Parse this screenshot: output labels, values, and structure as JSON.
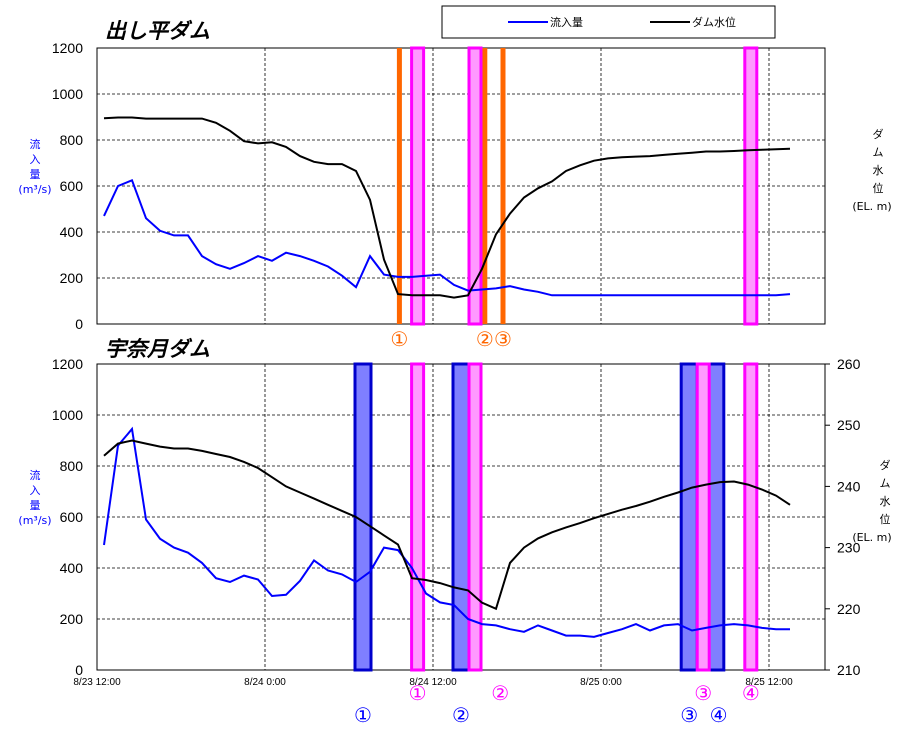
{
  "colors": {
    "inflow": "#0000ff",
    "water_level": "#000000",
    "orange": "#ff6600",
    "magenta": "#ff00ff",
    "magenta_fill": "#ff99ff",
    "blue_box": "#0000cc",
    "blue_fill": "#7f7fff"
  },
  "legend": {
    "inflow": "流入量",
    "water_level": "ダム水位"
  },
  "x_tick_labels": [
    "8/23 12:00",
    "8/24 0:00",
    "8/24 12:00",
    "8/25 0:00",
    "8/25 12:00"
  ],
  "chart_data": [
    {
      "type": "line",
      "title": "出し平ダム",
      "ylabel_left": [
        "流",
        "入",
        "量",
        "(m³/s)"
      ],
      "ylabel_right": [
        "ダ",
        "ム",
        "水",
        "位",
        "(EL. m)"
      ],
      "ylim": [
        0,
        1200
      ],
      "yticks": [
        0,
        200,
        400,
        600,
        800,
        1000,
        1200
      ],
      "xlim": [
        0,
        52
      ],
      "series": [
        {
          "name": "流入量",
          "x": [
            0.5,
            1.5,
            2.5,
            3.5,
            4.5,
            5.5,
            6.5,
            7.5,
            8.5,
            9.5,
            10.5,
            11.5,
            12.5,
            13.5,
            14.5,
            15.5,
            16.5,
            17.5,
            18.5,
            19.5,
            20.5,
            21.5,
            22.5,
            23.5,
            24.5,
            25.5,
            26.5,
            27.5,
            28.5,
            29.5,
            30.5,
            31.5,
            32.5,
            33.5,
            34.5,
            35.5,
            36.5,
            37.5,
            38.5,
            39.5,
            40.5,
            41.5,
            42.5,
            43.5,
            44.5,
            45.5,
            46.5,
            47.5,
            48.5,
            49.5
          ],
          "y": [
            470,
            600,
            625,
            460,
            405,
            385,
            385,
            295,
            260,
            240,
            265,
            295,
            275,
            310,
            295,
            275,
            250,
            210,
            160,
            295,
            215,
            205,
            205,
            210,
            215,
            170,
            145,
            150,
            155,
            165,
            150,
            140,
            125,
            125,
            125,
            125,
            125,
            125,
            125,
            125,
            125,
            125,
            125,
            125,
            125,
            125,
            125,
            125,
            125,
            130
          ]
        },
        {
          "name": "ダム水位",
          "x": [
            0.5,
            1.5,
            2.5,
            3.5,
            4.5,
            5.5,
            6.5,
            7.5,
            8.5,
            9.5,
            10.5,
            11.5,
            12.5,
            13.5,
            14.5,
            15.5,
            16.5,
            17.5,
            18.5,
            19.5,
            20.5,
            21.5,
            22.5,
            23.5,
            24.5,
            25.5,
            26.5,
            27.5,
            28.5,
            29.5,
            30.5,
            31.5,
            32.5,
            33.5,
            34.5,
            35.5,
            36.5,
            37.5,
            38.5,
            39.5,
            40.5,
            41.5,
            42.5,
            43.5,
            44.5,
            45.5,
            46.5,
            47.5,
            48.5,
            49.5
          ],
          "y": [
            895,
            898,
            898,
            893,
            893,
            893,
            893,
            893,
            875,
            840,
            795,
            785,
            790,
            770,
            730,
            705,
            695,
            695,
            665,
            540,
            280,
            130,
            125,
            125,
            125,
            115,
            125,
            240,
            390,
            480,
            550,
            590,
            620,
            665,
            690,
            710,
            720,
            725,
            728,
            730,
            735,
            740,
            745,
            750,
            750,
            752,
            755,
            758,
            760,
            762
          ]
        }
      ],
      "orange_bars": [
        {
          "x": 21.6,
          "label": "①"
        },
        {
          "x": 27.7,
          "label": "②"
        },
        {
          "x": 29.0,
          "label": "③"
        }
      ],
      "magenta_bars": [
        {
          "x": 22.9
        },
        {
          "x": 27.0
        },
        {
          "x": 46.7
        }
      ]
    },
    {
      "type": "line",
      "title": "宇奈月ダム",
      "ylabel_left": [
        "流",
        "入",
        "量",
        "(m³/s)"
      ],
      "ylabel_right": [
        "ダ",
        "ム",
        "水",
        "位",
        "(EL. m)"
      ],
      "ylim": [
        0,
        1200
      ],
      "yticks": [
        0,
        200,
        400,
        600,
        800,
        1000,
        1200
      ],
      "ylim_right": [
        210,
        260
      ],
      "yticks_right": [
        210,
        220,
        230,
        240,
        250,
        260
      ],
      "xlim": [
        0,
        52
      ],
      "series": [
        {
          "name": "流入量",
          "x": [
            0.5,
            1.5,
            2.5,
            3.5,
            4.5,
            5.5,
            6.5,
            7.5,
            8.5,
            9.5,
            10.5,
            11.5,
            12.5,
            13.5,
            14.5,
            15.5,
            16.5,
            17.5,
            18.5,
            19.5,
            20.5,
            21.5,
            22.5,
            23.5,
            24.5,
            25.5,
            26.5,
            27.5,
            28.5,
            29.5,
            30.5,
            31.5,
            32.5,
            33.5,
            34.5,
            35.5,
            36.5,
            37.5,
            38.5,
            39.5,
            40.5,
            41.5,
            42.5,
            43.5,
            44.5,
            45.5,
            46.5,
            47.5,
            48.5,
            49.5
          ],
          "y": [
            490,
            880,
            945,
            590,
            515,
            480,
            460,
            420,
            360,
            345,
            370,
            355,
            290,
            295,
            350,
            430,
            390,
            375,
            345,
            385,
            480,
            470,
            400,
            300,
            265,
            255,
            200,
            180,
            175,
            160,
            150,
            175,
            155,
            135,
            135,
            130,
            145,
            160,
            180,
            155,
            175,
            180,
            155,
            165,
            175,
            180,
            175,
            165,
            160,
            160
          ]
        },
        {
          "name": "ダム水位",
          "x": [
            0.5,
            1.5,
            2.5,
            3.5,
            4.5,
            5.5,
            6.5,
            7.5,
            8.5,
            9.5,
            10.5,
            11.5,
            12.5,
            13.5,
            14.5,
            15.5,
            16.5,
            17.5,
            18.5,
            19.5,
            20.5,
            21.5,
            22.5,
            23.5,
            24.5,
            25.5,
            26.5,
            27.5,
            28.5,
            29.5,
            30.5,
            31.5,
            32.5,
            33.5,
            34.5,
            35.5,
            36.5,
            37.5,
            38.5,
            39.5,
            40.5,
            41.5,
            42.5,
            43.5,
            44.5,
            45.5,
            46.5,
            47.5,
            48.5,
            49.5
          ],
          "y": [
            245.0,
            247.0,
            247.5,
            247.0,
            246.5,
            246.2,
            246.2,
            245.8,
            245.3,
            244.8,
            244.0,
            243.0,
            241.5,
            240.0,
            239.0,
            238.0,
            237.0,
            236.0,
            235.0,
            233.5,
            232.0,
            230.5,
            225.0,
            224.7,
            224.2,
            223.5,
            223.0,
            221.0,
            220.0,
            227.5,
            230.0,
            231.5,
            232.5,
            233.3,
            234.0,
            234.8,
            235.5,
            236.2,
            236.8,
            237.5,
            238.3,
            239.0,
            239.8,
            240.3,
            240.7,
            240.8,
            240.3,
            239.5,
            238.5,
            237.0
          ]
        }
      ],
      "blue_bars": [
        {
          "x": 19.0
        },
        {
          "x": 26.0
        },
        {
          "x": 42.3
        },
        {
          "x": 44.2
        }
      ],
      "magenta_bars": [
        {
          "x": 22.9
        },
        {
          "x": 27.0
        },
        {
          "x": 43.3
        },
        {
          "x": 46.7
        }
      ]
    }
  ],
  "bottom_markers": [
    {
      "label": "①",
      "color": "blue",
      "x": 19.0
    },
    {
      "label": "①",
      "color": "magenta",
      "x": 22.9
    },
    {
      "label": "②",
      "color": "blue",
      "x": 26.0
    },
    {
      "label": "②",
      "color": "magenta",
      "x": 28.8
    },
    {
      "label": "③",
      "color": "blue",
      "x": 42.3
    },
    {
      "label": "③",
      "color": "magenta",
      "x": 43.3
    },
    {
      "label": "④",
      "color": "blue",
      "x": 44.4
    },
    {
      "label": "④",
      "color": "magenta",
      "x": 46.7
    }
  ]
}
